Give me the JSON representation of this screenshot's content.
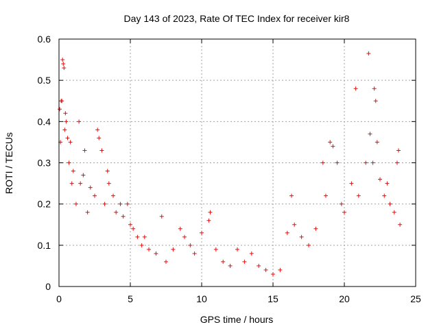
{
  "chart_data": {
    "type": "scatter",
    "title": "Day 143 of 2023, Rate Of TEC Index for receiver kir8",
    "xlabel": "GPS time / hours",
    "ylabel": "ROTI / TECUs",
    "xlim": [
      0,
      25
    ],
    "ylim": [
      0,
      0.6
    ],
    "xticks": [
      0,
      5,
      10,
      15,
      20,
      25
    ],
    "xtick_labels": [
      "0",
      "5",
      "10",
      "15",
      "20",
      "25"
    ],
    "yticks": [
      0,
      0.1,
      0.2,
      0.3,
      0.4,
      0.5,
      0.6
    ],
    "ytick_labels": [
      "0",
      "0.1",
      "0.2",
      "0.3",
      "0.4",
      "0.5",
      "0.6"
    ],
    "grid": true,
    "marker": "+",
    "series": [
      {
        "name": "ROTI",
        "color": "#ff0000",
        "points": [
          [
            0.05,
            0.43
          ],
          [
            0.1,
            0.35
          ],
          [
            0.15,
            0.45
          ],
          [
            0.2,
            0.45
          ],
          [
            0.25,
            0.55
          ],
          [
            0.3,
            0.54
          ],
          [
            0.35,
            0.53
          ],
          [
            0.4,
            0.38
          ],
          [
            0.45,
            0.42
          ],
          [
            0.5,
            0.4
          ],
          [
            0.6,
            0.36
          ],
          [
            0.7,
            0.3
          ],
          [
            0.8,
            0.35
          ],
          [
            0.9,
            0.25
          ],
          [
            1.0,
            0.28
          ],
          [
            1.2,
            0.2
          ],
          [
            1.4,
            0.4
          ],
          [
            1.5,
            0.25
          ],
          [
            1.7,
            0.27
          ],
          [
            1.8,
            0.33
          ],
          [
            2.0,
            0.18
          ],
          [
            2.2,
            0.24
          ],
          [
            2.5,
            0.22
          ],
          [
            2.7,
            0.38
          ],
          [
            2.8,
            0.36
          ],
          [
            3.0,
            0.33
          ],
          [
            3.2,
            0.2
          ],
          [
            3.4,
            0.28
          ],
          [
            3.5,
            0.25
          ],
          [
            3.8,
            0.22
          ],
          [
            4.0,
            0.18
          ],
          [
            4.3,
            0.2
          ],
          [
            4.5,
            0.17
          ],
          [
            4.8,
            0.2
          ],
          [
            5.0,
            0.15
          ],
          [
            5.2,
            0.14
          ],
          [
            5.5,
            0.12
          ],
          [
            5.8,
            0.1
          ],
          [
            6.0,
            0.12
          ],
          [
            6.3,
            0.09
          ],
          [
            6.8,
            0.08
          ],
          [
            7.2,
            0.17
          ],
          [
            7.5,
            0.06
          ],
          [
            8.0,
            0.09
          ],
          [
            8.5,
            0.14
          ],
          [
            8.8,
            0.12
          ],
          [
            9.2,
            0.1
          ],
          [
            9.5,
            0.08
          ],
          [
            10.0,
            0.13
          ],
          [
            10.5,
            0.16
          ],
          [
            10.6,
            0.18
          ],
          [
            11.0,
            0.09
          ],
          [
            11.5,
            0.06
          ],
          [
            12.0,
            0.05
          ],
          [
            12.5,
            0.09
          ],
          [
            13.0,
            0.06
          ],
          [
            13.5,
            0.08
          ],
          [
            14.0,
            0.05
          ],
          [
            14.5,
            0.04
          ],
          [
            15.0,
            0.03
          ],
          [
            15.5,
            0.04
          ],
          [
            16.0,
            0.13
          ],
          [
            16.3,
            0.22
          ],
          [
            16.5,
            0.15
          ],
          [
            17.0,
            0.12
          ],
          [
            17.5,
            0.1
          ],
          [
            18.0,
            0.14
          ],
          [
            18.5,
            0.3
          ],
          [
            18.7,
            0.22
          ],
          [
            19.0,
            0.35
          ],
          [
            19.2,
            0.34
          ],
          [
            19.5,
            0.3
          ],
          [
            19.8,
            0.2
          ],
          [
            20.0,
            0.18
          ],
          [
            20.5,
            0.25
          ],
          [
            20.8,
            0.48
          ],
          [
            21.0,
            0.22
          ],
          [
            21.5,
            0.3
          ],
          [
            21.7,
            0.565
          ],
          [
            21.8,
            0.37
          ],
          [
            22.0,
            0.3
          ],
          [
            22.1,
            0.48
          ],
          [
            22.2,
            0.45
          ],
          [
            22.3,
            0.35
          ],
          [
            22.5,
            0.26
          ],
          [
            22.8,
            0.22
          ],
          [
            23.0,
            0.25
          ],
          [
            23.2,
            0.2
          ],
          [
            23.5,
            0.18
          ],
          [
            23.7,
            0.3
          ],
          [
            23.8,
            0.33
          ],
          [
            23.9,
            0.15
          ]
        ]
      }
    ]
  }
}
